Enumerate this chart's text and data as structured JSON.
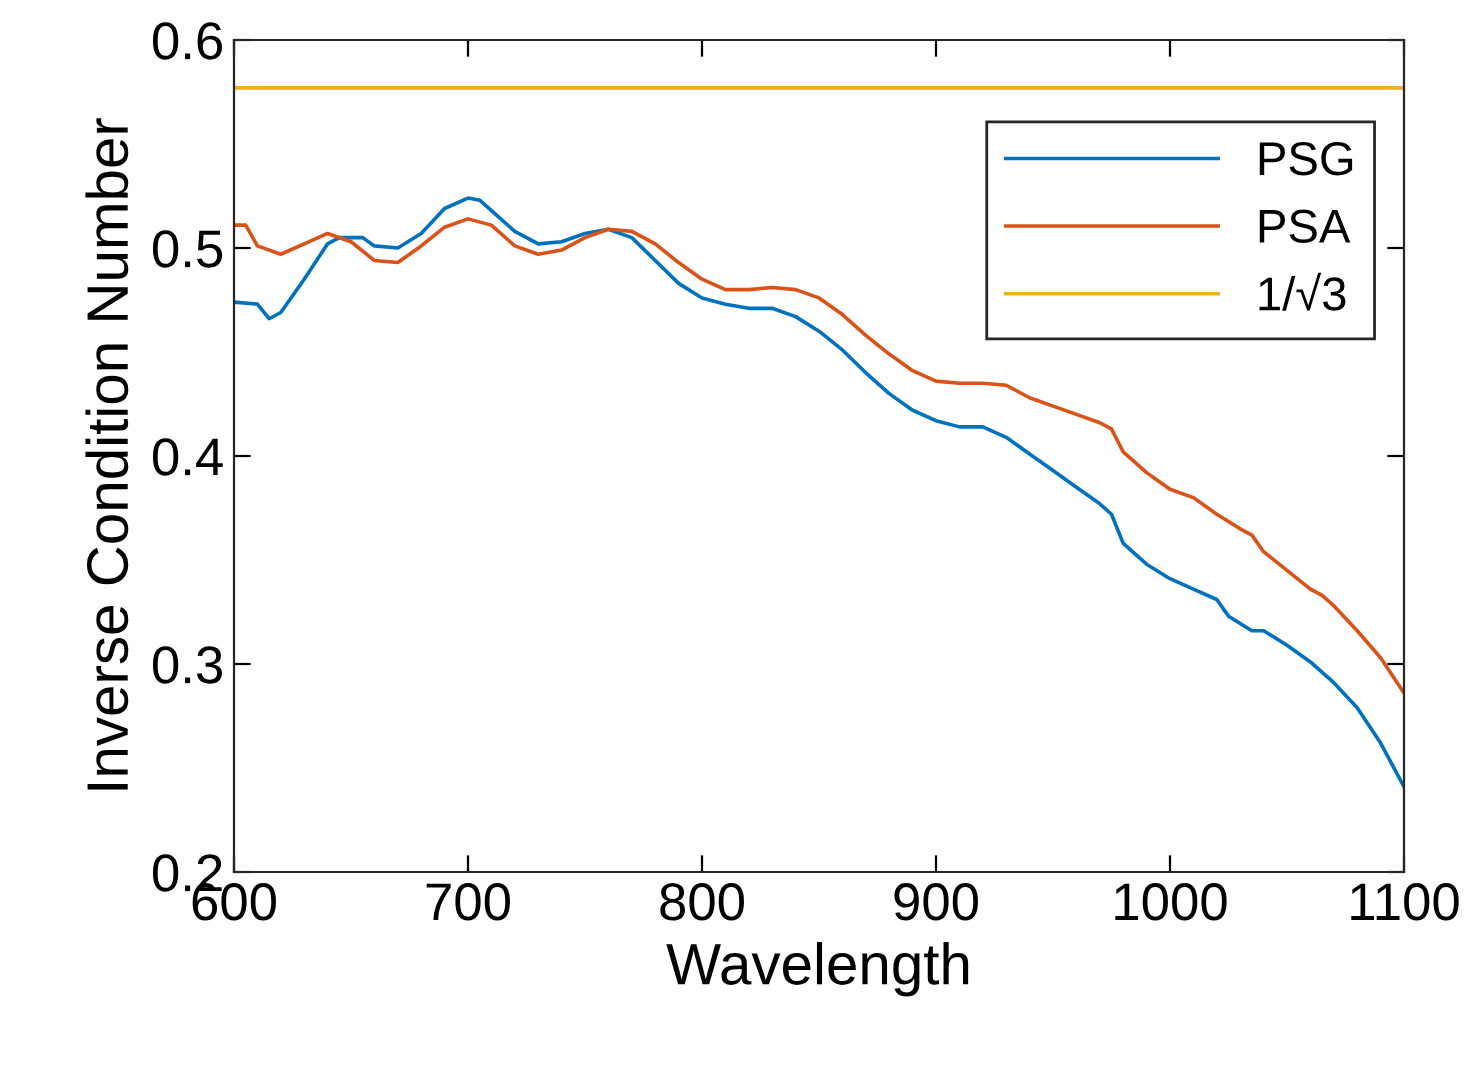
{
  "chart_data": {
    "type": "line",
    "xlabel": "Wavelength",
    "ylabel": "Inverse Condition Number",
    "xlim": [
      600,
      1100
    ],
    "ylim": [
      0.2,
      0.6
    ],
    "xticks": [
      600,
      700,
      800,
      900,
      1000,
      1100
    ],
    "yticks": [
      0.2,
      0.3,
      0.4,
      0.5,
      0.6
    ],
    "grid": false,
    "legend": "top right",
    "line_style": "solid",
    "marker": "none",
    "series": [
      {
        "name": "PSG",
        "color": "#0072bd",
        "x": [
          600,
          610,
          615,
          620,
          630,
          640,
          645,
          655,
          660,
          670,
          680,
          690,
          700,
          705,
          720,
          730,
          740,
          750,
          760,
          770,
          780,
          790,
          800,
          810,
          820,
          830,
          840,
          850,
          860,
          870,
          880,
          890,
          900,
          910,
          920,
          930,
          940,
          950,
          960,
          970,
          975,
          980,
          990,
          1000,
          1010,
          1020,
          1025,
          1035,
          1040,
          1050,
          1060,
          1070,
          1080,
          1090,
          1100
        ],
        "values": [
          0.474,
          0.473,
          0.466,
          0.469,
          0.485,
          0.502,
          0.505,
          0.505,
          0.501,
          0.5,
          0.507,
          0.519,
          0.524,
          0.523,
          0.508,
          0.502,
          0.503,
          0.507,
          0.509,
          0.505,
          0.494,
          0.483,
          0.476,
          0.473,
          0.471,
          0.471,
          0.467,
          0.46,
          0.451,
          0.44,
          0.43,
          0.422,
          0.417,
          0.414,
          0.414,
          0.409,
          0.401,
          0.393,
          0.385,
          0.377,
          0.372,
          0.358,
          0.348,
          0.341,
          0.336,
          0.331,
          0.323,
          0.316,
          0.316,
          0.309,
          0.301,
          0.291,
          0.279,
          0.262,
          0.241
        ]
      },
      {
        "name": "PSA",
        "color": "#d95319",
        "x": [
          600,
          605,
          610,
          620,
          630,
          640,
          650,
          660,
          670,
          680,
          690,
          700,
          710,
          720,
          730,
          740,
          750,
          760,
          770,
          780,
          790,
          800,
          810,
          820,
          830,
          840,
          850,
          860,
          870,
          880,
          890,
          900,
          910,
          920,
          930,
          940,
          950,
          960,
          970,
          975,
          980,
          990,
          1000,
          1010,
          1020,
          1030,
          1035,
          1040,
          1050,
          1060,
          1065,
          1070,
          1080,
          1090,
          1100
        ],
        "values": [
          0.511,
          0.511,
          0.501,
          0.497,
          0.502,
          0.507,
          0.503,
          0.494,
          0.493,
          0.501,
          0.51,
          0.514,
          0.511,
          0.501,
          0.497,
          0.499,
          0.505,
          0.509,
          0.508,
          0.502,
          0.493,
          0.485,
          0.48,
          0.48,
          0.481,
          0.48,
          0.476,
          0.468,
          0.458,
          0.449,
          0.441,
          0.436,
          0.435,
          0.435,
          0.434,
          0.428,
          0.424,
          0.42,
          0.416,
          0.413,
          0.402,
          0.392,
          0.384,
          0.38,
          0.372,
          0.365,
          0.362,
          0.354,
          0.345,
          0.336,
          0.333,
          0.328,
          0.316,
          0.303,
          0.286
        ]
      },
      {
        "name": "1/√3",
        "color": "#edb120",
        "x": [
          600,
          1100
        ],
        "values": [
          0.577,
          0.577
        ]
      }
    ]
  }
}
